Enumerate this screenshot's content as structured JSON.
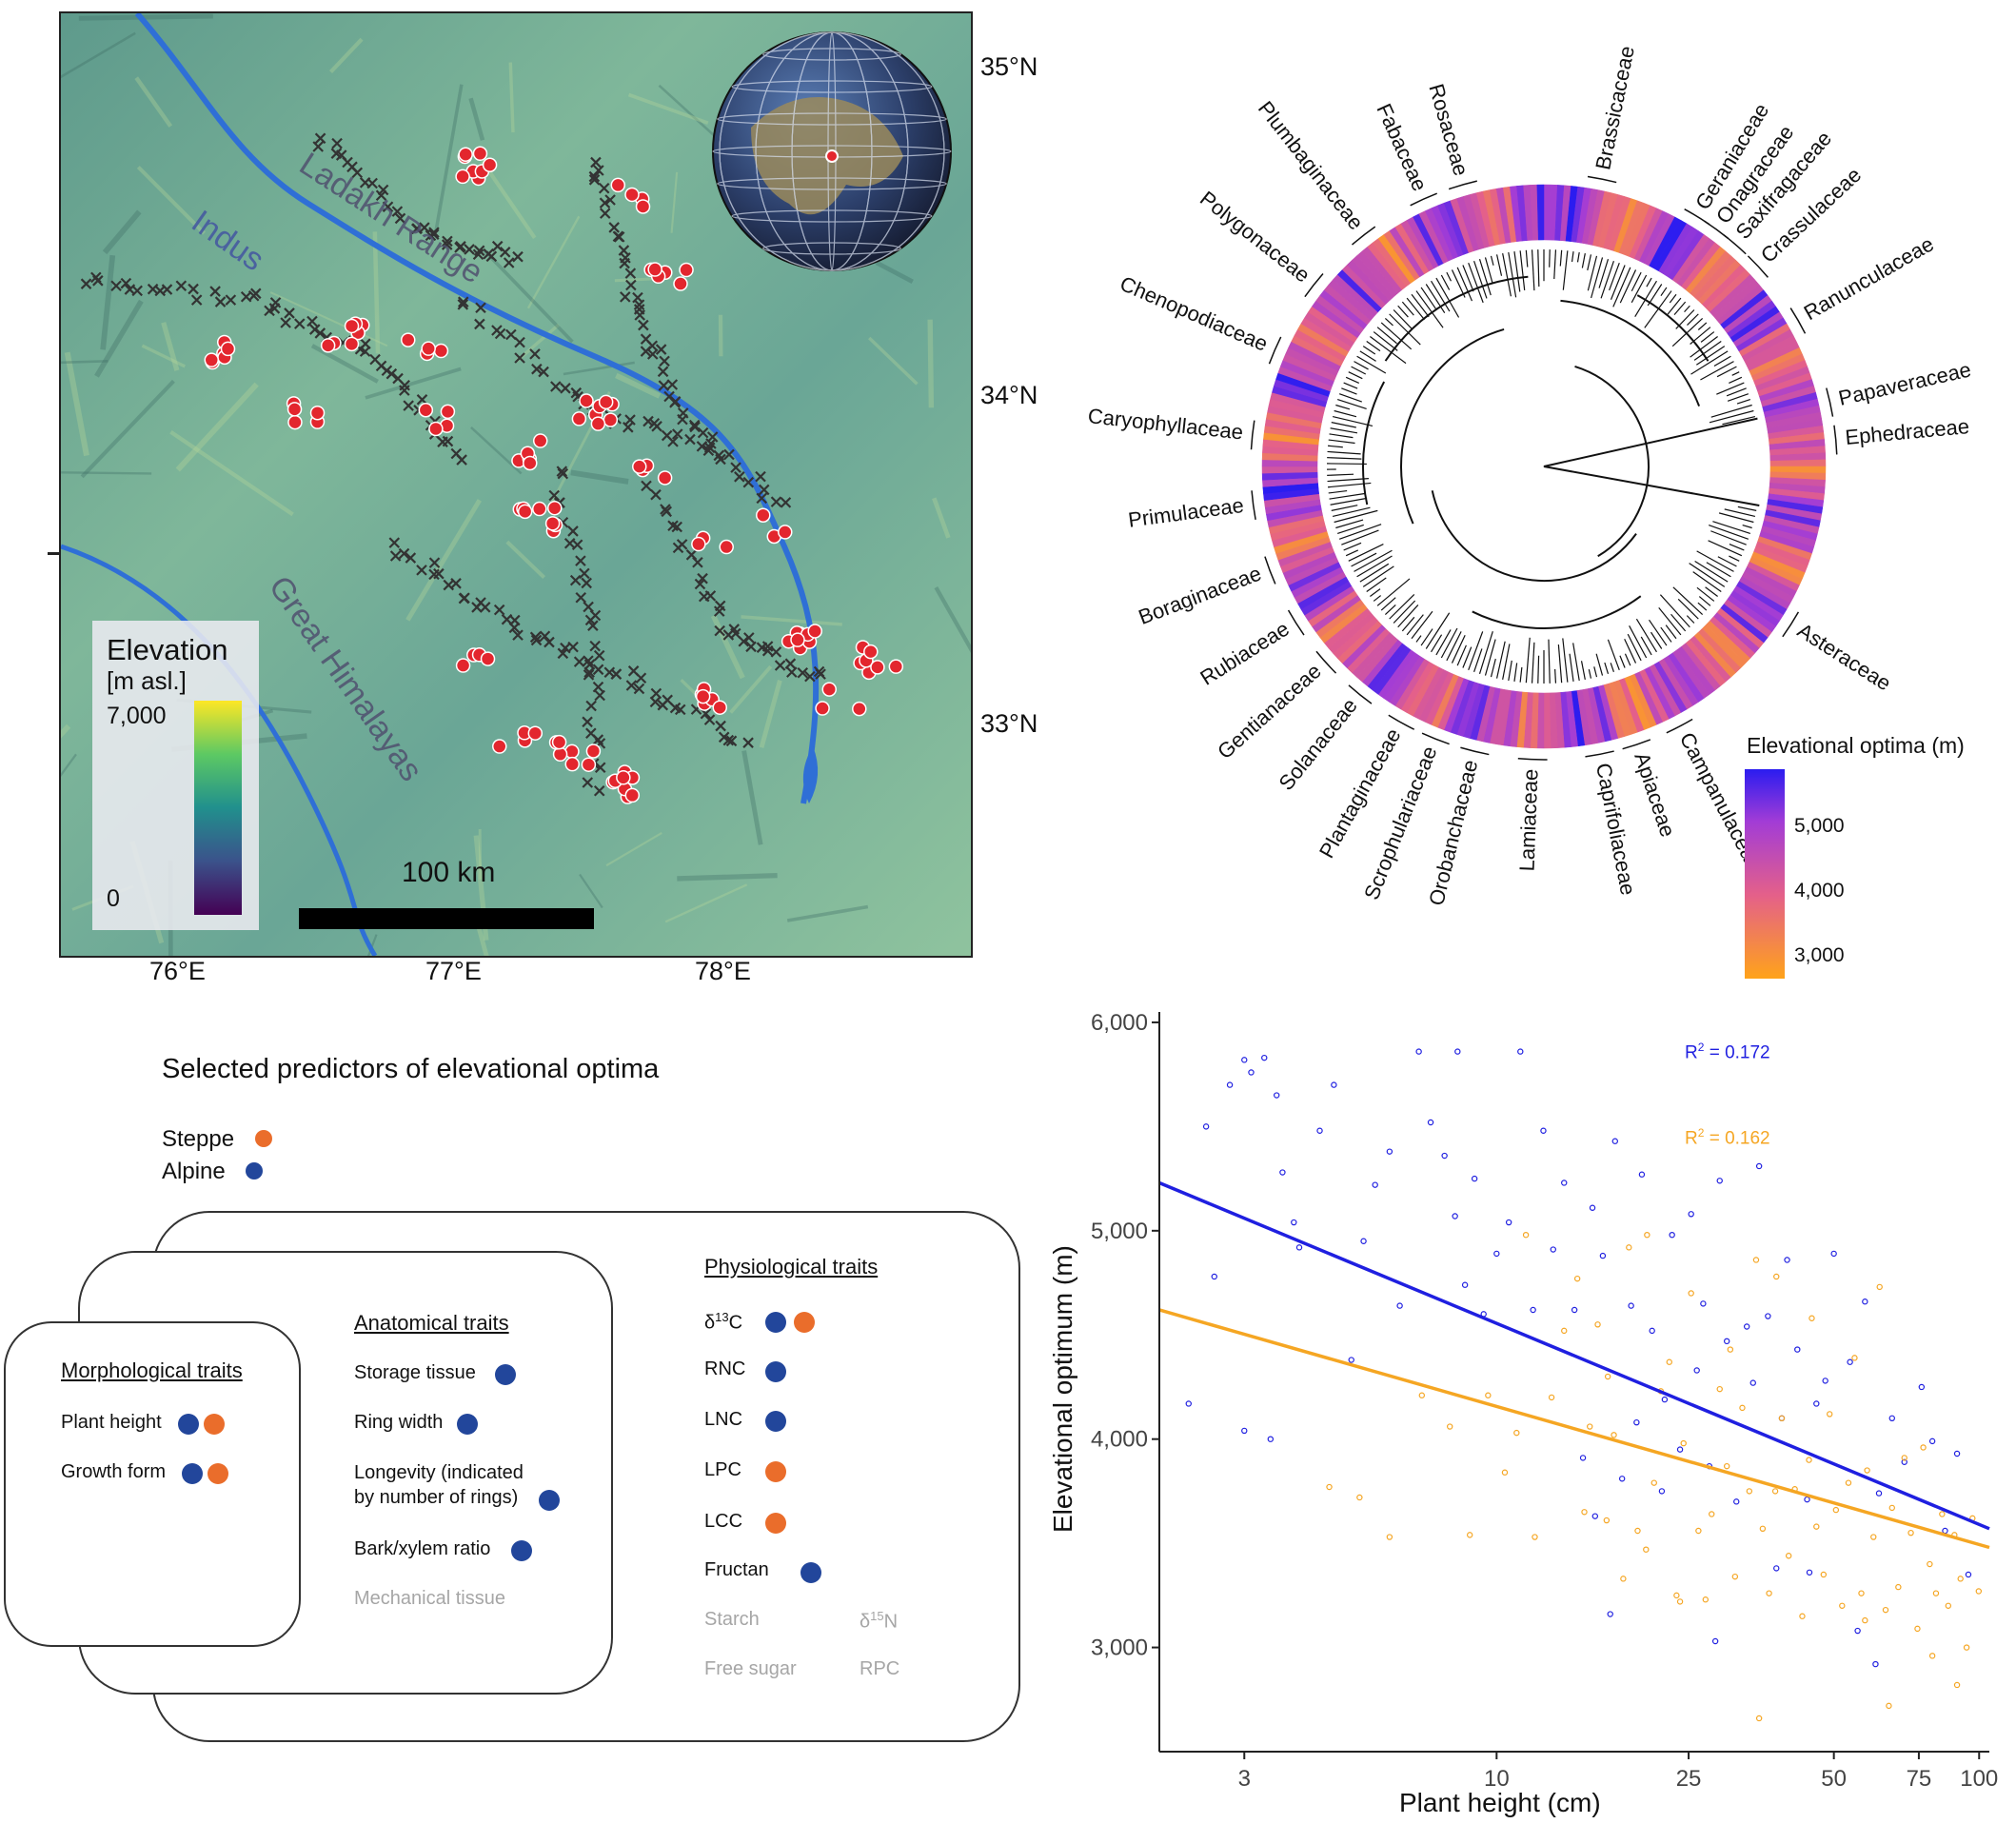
{
  "map": {
    "lat_labels": [
      "35°N",
      "34°N",
      "33°N"
    ],
    "lon_labels": [
      "76°E",
      "77°E",
      "78°E"
    ],
    "terrain_labels": [
      "Ladakh Range",
      "Indus",
      "Great Himalayas"
    ],
    "legend_title": "Elevation",
    "legend_unit": "[m asl.]",
    "legend_max": "7,000",
    "legend_min": "0",
    "scale_label": "100 km",
    "colors": {
      "occurrence": "#e3262e",
      "survey": "#333333",
      "river": "#2f6fd6"
    }
  },
  "tree": {
    "families": [
      "Rosaceae",
      "Brassicaceae",
      "Geraniaceae",
      "Onagraceae",
      "Saxifragaceae",
      "Crassulaceae",
      "Ranunculaceae",
      "Papaveraceae",
      "Ephedraceae",
      "Asteraceae",
      "Campanulaceae",
      "Apiaceae",
      "Caprifoliaceae",
      "Lamiaceae",
      "Orobanchaceae",
      "Scrophulariaceae",
      "Plantaginaceae",
      "Solanaceae",
      "Gentianaceae",
      "Rubiaceae",
      "Boraginaceae",
      "Primulaceae",
      "Caryophyllaceae",
      "Chenopodiaceae",
      "Polygonaceae",
      "Plumbaginaceae",
      "Fabaceae"
    ],
    "legend_title": "Elevational optima (m)",
    "legend_ticks": [
      "5,000",
      "4,000",
      "3,000"
    ],
    "colors": {
      "high": "#2b1cf0",
      "mid": "#b450c9",
      "low": "#ffa31a"
    }
  },
  "predictors": {
    "title": "Selected predictors of elevational optima",
    "legend": [
      {
        "label": "Steppe",
        "color": "#ea6d2b"
      },
      {
        "label": "Alpine",
        "color": "#22469b"
      }
    ],
    "morphological": {
      "title": "Morphological traits",
      "items": [
        "Plant height",
        "Growth form"
      ]
    },
    "anatomical": {
      "title": "Anatomical traits",
      "items": [
        "Storage tissue",
        "Ring width",
        "Longevity (indicated",
        "by number of rings)",
        "Bark/xylem ratio",
        "Mechanical tissue"
      ]
    },
    "physiological": {
      "title": "Physiological traits",
      "items": [
        "RNC",
        "LNC",
        "LPC",
        "LCC",
        "Fructan",
        "Starch",
        "Free sugar",
        "RPC"
      ],
      "d13c": "δ",
      "d13c_sup": "13",
      "d13c_el": "C",
      "d15n": "δ",
      "d15n_sup": "15",
      "d15n_el": "N"
    }
  },
  "chart_data": {
    "type": "scatter",
    "xlabel": "Plant height (cm)",
    "ylabel": "Elevational optimum (m)",
    "x_scale": "log",
    "x_ticks": [
      3,
      10,
      25,
      50,
      75,
      100
    ],
    "x_tick_labels": [
      "3",
      "10",
      "25",
      "50",
      "75",
      "100"
    ],
    "y_ticks": [
      3000,
      4000,
      5000,
      6000
    ],
    "y_tick_labels": [
      "3,000",
      "4,000",
      "5,000",
      "6,000"
    ],
    "xlim": [
      2,
      105
    ],
    "ylim": [
      2500,
      6050
    ],
    "series": [
      {
        "color": "#1f1fe0",
        "r2_label": "R",
        "r2_sup": "2",
        "r2_value": " = 0.172",
        "fit": [
          [
            2,
            5230
          ],
          [
            105,
            3570
          ]
        ],
        "points": [
          [
            2.3,
            4170
          ],
          [
            2.5,
            5500
          ],
          [
            2.6,
            4780
          ],
          [
            2.8,
            5700
          ],
          [
            3.0,
            5820
          ],
          [
            3.0,
            4040
          ],
          [
            3.1,
            5760
          ],
          [
            3.3,
            5830
          ],
          [
            3.4,
            4000
          ],
          [
            3.5,
            5650
          ],
          [
            3.6,
            5280
          ],
          [
            3.8,
            5040
          ],
          [
            3.9,
            4920
          ],
          [
            4.3,
            5480
          ],
          [
            4.6,
            5700
          ],
          [
            5.0,
            4380
          ],
          [
            5.3,
            4950
          ],
          [
            5.6,
            5220
          ],
          [
            6.0,
            5380
          ],
          [
            6.3,
            4640
          ],
          [
            6.9,
            5860
          ],
          [
            7.3,
            5520
          ],
          [
            7.8,
            5360
          ],
          [
            8.2,
            5070
          ],
          [
            8.3,
            5860
          ],
          [
            8.6,
            4740
          ],
          [
            9.0,
            5250
          ],
          [
            9.4,
            4600
          ],
          [
            10.0,
            4890
          ],
          [
            10.6,
            5040
          ],
          [
            11.2,
            5860
          ],
          [
            11.9,
            4620
          ],
          [
            12.5,
            5480
          ],
          [
            13.1,
            4910
          ],
          [
            13.8,
            5230
          ],
          [
            14.5,
            4620
          ],
          [
            15.1,
            3910
          ],
          [
            15.8,
            5110
          ],
          [
            16.6,
            4880
          ],
          [
            17.6,
            5430
          ],
          [
            18.2,
            3810
          ],
          [
            19.0,
            4640
          ],
          [
            20.0,
            5270
          ],
          [
            21.0,
            4520
          ],
          [
            22.3,
            4190
          ],
          [
            23.1,
            4980
          ],
          [
            24.0,
            3950
          ],
          [
            25.3,
            5080
          ],
          [
            26.0,
            4330
          ],
          [
            26.8,
            4650
          ],
          [
            27.6,
            3870
          ],
          [
            29.0,
            5240
          ],
          [
            30.0,
            4470
          ],
          [
            31.4,
            3700
          ],
          [
            33.0,
            4540
          ],
          [
            34.0,
            4270
          ],
          [
            35.0,
            5310
          ],
          [
            36.5,
            4590
          ],
          [
            38.0,
            3380
          ],
          [
            39.0,
            4100
          ],
          [
            40.0,
            4860
          ],
          [
            42.0,
            4430
          ],
          [
            44.0,
            3710
          ],
          [
            46.0,
            4170
          ],
          [
            48.0,
            4280
          ],
          [
            50.0,
            4890
          ],
          [
            54.0,
            4370
          ],
          [
            58.0,
            4660
          ],
          [
            62.0,
            3740
          ],
          [
            66.0,
            4100
          ],
          [
            70.0,
            3890
          ],
          [
            76.0,
            4250
          ],
          [
            80.0,
            3990
          ],
          [
            85.0,
            3560
          ],
          [
            90.0,
            3930
          ],
          [
            95.0,
            3350
          ],
          [
            17.2,
            3160
          ],
          [
            28.4,
            3030
          ],
          [
            16.0,
            3630
          ],
          [
            22.0,
            3750
          ],
          [
            19.5,
            4080
          ],
          [
            44.5,
            3360
          ],
          [
            56.0,
            3080
          ],
          [
            61.0,
            2920
          ]
        ]
      },
      {
        "color": "#f5a623",
        "r2_label": "R",
        "r2_sup": "2",
        "r2_value": " = 0.162",
        "fit": [
          [
            2,
            4620
          ],
          [
            105,
            3480
          ]
        ],
        "points": [
          [
            4.5,
            3770
          ],
          [
            5.2,
            3720
          ],
          [
            6.0,
            3530
          ],
          [
            7.0,
            4210
          ],
          [
            8.0,
            4060
          ],
          [
            8.8,
            3540
          ],
          [
            9.6,
            4210
          ],
          [
            10.4,
            3840
          ],
          [
            11.0,
            4030
          ],
          [
            12.0,
            3530
          ],
          [
            13.0,
            4200
          ],
          [
            13.8,
            4520
          ],
          [
            14.7,
            4770
          ],
          [
            15.2,
            3650
          ],
          [
            15.6,
            4060
          ],
          [
            16.2,
            4550
          ],
          [
            16.9,
            3610
          ],
          [
            17.5,
            4020
          ],
          [
            18.3,
            3330
          ],
          [
            18.8,
            4920
          ],
          [
            19.6,
            3560
          ],
          [
            20.4,
            3470
          ],
          [
            21.2,
            3790
          ],
          [
            21.9,
            4230
          ],
          [
            22.8,
            4370
          ],
          [
            23.6,
            3250
          ],
          [
            24.4,
            3980
          ],
          [
            25.3,
            4700
          ],
          [
            26.2,
            3560
          ],
          [
            27.1,
            3230
          ],
          [
            27.9,
            3640
          ],
          [
            29.0,
            4240
          ],
          [
            30.0,
            3870
          ],
          [
            31.2,
            3340
          ],
          [
            32.3,
            4150
          ],
          [
            33.4,
            3750
          ],
          [
            34.5,
            4860
          ],
          [
            35.6,
            3570
          ],
          [
            36.7,
            3260
          ],
          [
            37.8,
            3750
          ],
          [
            39.0,
            4100
          ],
          [
            40.3,
            3440
          ],
          [
            41.5,
            3760
          ],
          [
            43.0,
            3150
          ],
          [
            44.4,
            3900
          ],
          [
            46.0,
            3580
          ],
          [
            47.6,
            3350
          ],
          [
            49.0,
            4120
          ],
          [
            50.5,
            3660
          ],
          [
            52.0,
            3200
          ],
          [
            53.6,
            3790
          ],
          [
            55.2,
            4390
          ],
          [
            57.0,
            3260
          ],
          [
            58.6,
            3850
          ],
          [
            60.4,
            3530
          ],
          [
            62.2,
            4730
          ],
          [
            64.0,
            3180
          ],
          [
            66.0,
            3670
          ],
          [
            68.0,
            3290
          ],
          [
            70.0,
            3910
          ],
          [
            72.2,
            3550
          ],
          [
            74.5,
            3090
          ],
          [
            76.6,
            3960
          ],
          [
            79.0,
            3400
          ],
          [
            81.4,
            3260
          ],
          [
            83.8,
            3640
          ],
          [
            86.3,
            3200
          ],
          [
            88.9,
            3540
          ],
          [
            91.5,
            3330
          ],
          [
            94.2,
            3000
          ],
          [
            96.9,
            3620
          ],
          [
            99.8,
            3270
          ],
          [
            45.0,
            4580
          ],
          [
            38.0,
            4780
          ],
          [
            30.5,
            4430
          ],
          [
            20.5,
            4980
          ],
          [
            17.0,
            4300
          ],
          [
            11.5,
            4980
          ],
          [
            35.0,
            2660
          ],
          [
            24.0,
            3220
          ],
          [
            58.0,
            3130
          ],
          [
            65.0,
            2720
          ],
          [
            80.0,
            2960
          ],
          [
            90.0,
            2820
          ]
        ]
      }
    ]
  }
}
